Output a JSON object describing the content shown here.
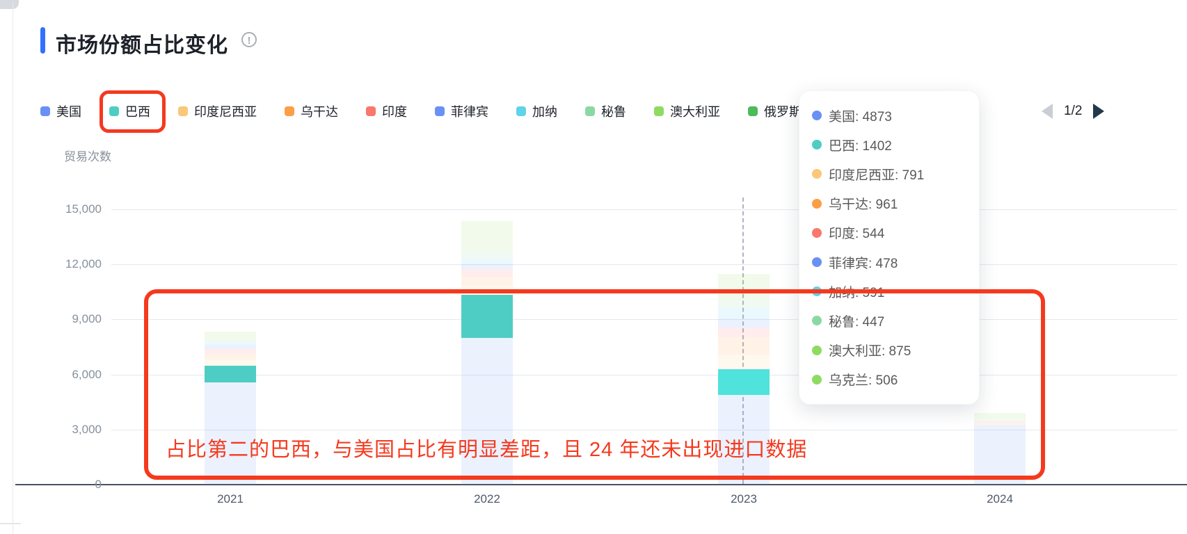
{
  "page": {
    "title": "市场份额占比变化",
    "info_icon_glyph": "!"
  },
  "legend": {
    "items": [
      {
        "label": "美国",
        "color": "#6A90F5",
        "circled": false
      },
      {
        "label": "巴西",
        "color": "#4ECDC4",
        "circled": true
      },
      {
        "label": "印度尼西亚",
        "color": "#FAC878",
        "circled": false
      },
      {
        "label": "乌干达",
        "color": "#FC9E44",
        "circled": false
      },
      {
        "label": "印度",
        "color": "#F9776C",
        "circled": false
      },
      {
        "label": "菲律宾",
        "color": "#6A90F5",
        "circled": false
      },
      {
        "label": "加纳",
        "color": "#5FD2EC",
        "circled": false
      },
      {
        "label": "秘鲁",
        "color": "#8CD8A4",
        "circled": false
      },
      {
        "label": "澳大利亚",
        "color": "#8FDB62",
        "circled": false
      },
      {
        "label": "俄罗斯",
        "color": "#4CBB58",
        "circled": false
      },
      {
        "label": "乌克兰",
        "color": "#8FDB62",
        "circled": false
      }
    ],
    "pagination": {
      "label": "1/2",
      "prev_enabled": false,
      "next_enabled": true
    }
  },
  "chart_data": {
    "type": "bar",
    "stacked": true,
    "title": "市场份额占比变化",
    "ylabel": "贸易次数",
    "xlabel": "",
    "categories": [
      "2021",
      "2022",
      "2023",
      "2024"
    ],
    "ylim": [
      0,
      15000
    ],
    "yticks": [
      0,
      3000,
      6000,
      9000,
      12000,
      15000
    ],
    "ytick_labels": [
      "0",
      "3,000",
      "6,000",
      "9,000",
      "12,000",
      "15,000"
    ],
    "grid": "horizontal",
    "legend_position": "top",
    "highlight_series": "巴西",
    "hover_category": "2023",
    "series": [
      {
        "name": "美国",
        "color": "#6A90F5",
        "faded": true,
        "values": [
          5570,
          7990,
          4873,
          3250
        ]
      },
      {
        "name": "巴西",
        "color": "#4ECDC4",
        "faded": false,
        "highlight_color": "#4FE3DB",
        "values": [
          910,
          2350,
          1402,
          0
        ]
      },
      {
        "name": "印度尼西亚",
        "color": "#FAC878",
        "faded": true,
        "values": [
          340,
          500,
          791,
          0
        ]
      },
      {
        "name": "乌干达",
        "color": "#FC9E44",
        "faded": true,
        "values": [
          300,
          490,
          961,
          120
        ]
      },
      {
        "name": "印度",
        "color": "#F9776C",
        "faded": true,
        "values": [
          270,
          430,
          544,
          80
        ]
      },
      {
        "name": "菲律宾",
        "color": "#6A90F5",
        "faded": true,
        "values": [
          230,
          240,
          478,
          0
        ]
      },
      {
        "name": "加纳",
        "color": "#5FD2EC",
        "faded": true,
        "values": [
          140,
          300,
          591,
          0
        ]
      },
      {
        "name": "秘鲁",
        "color": "#8CD8A4",
        "faded": true,
        "values": [
          180,
          450,
          447,
          100
        ]
      },
      {
        "name": "澳大利亚",
        "color": "#8FDB62",
        "faded": true,
        "values": [
          250,
          900,
          875,
          250
        ]
      },
      {
        "name": "乌克兰",
        "color": "#8FDB62",
        "faded": true,
        "values": [
          160,
          700,
          506,
          100
        ]
      }
    ]
  },
  "tooltip": {
    "rows": [
      {
        "label": "美国",
        "value": "4873",
        "color": "#6A90F5"
      },
      {
        "label": "巴西",
        "value": "1402",
        "color": "#4ECDC4"
      },
      {
        "label": "印度尼西亚",
        "value": "791",
        "color": "#FAC878"
      },
      {
        "label": "乌干达",
        "value": "961",
        "color": "#FC9E44"
      },
      {
        "label": "印度",
        "value": "544",
        "color": "#F9776C"
      },
      {
        "label": "菲律宾",
        "value": "478",
        "color": "#6A90F5"
      },
      {
        "label": "加纳",
        "value": "591",
        "color": "#5FD2EC"
      },
      {
        "label": "秘鲁",
        "value": "447",
        "color": "#8CD8A4"
      },
      {
        "label": "澳大利亚",
        "value": "875",
        "color": "#8FDB62"
      },
      {
        "label": "乌克兰",
        "value": "506",
        "color": "#8FDB62"
      }
    ]
  },
  "annotations": {
    "highlight_text": "占比第二的巴西，与美国占比有明显差距，且 24 年还未出现进口数据",
    "color": "#F5391E"
  },
  "colors": {
    "accent": "#3370FF",
    "annotation_red": "#F5391E",
    "axis_line": "#47525F",
    "gridline": "#E5E8EF",
    "tick_text": "#86909C",
    "legend_text": "#1D2129",
    "tooltip_text": "#595959"
  }
}
